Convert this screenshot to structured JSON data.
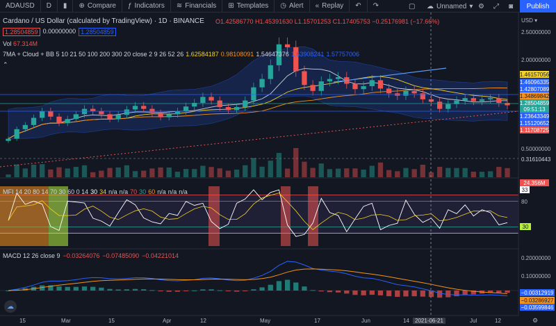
{
  "toolbar": {
    "symbol": "ADAUSD",
    "interval": "D",
    "compare": "Compare",
    "indicators": "Indicators",
    "financials": "Financials",
    "templates": "Templates",
    "alert": "Alert",
    "replay": "Replay",
    "layout_name": "Unnamed",
    "publish": "Publish"
  },
  "legend": {
    "title": "Cardano / US Dollar (calculated by TradingView) · 1D · BINANCE",
    "ohlc": "O1.42586770 H1.45391630 L1.15701253 C1.17405753 −0.25176981 (−17.66%)",
    "bid": "1.28504859",
    "spread": "0.00000000",
    "ask": "1.28504859",
    "vol_label": "Vol",
    "vol_value": "67.314M",
    "ma_label": "7MA + Cloud + BB 5 10 21 50 100 200 300 20 close 2 9 26 52 26",
    "ma_values": [
      "1.62584187",
      "0.98108091",
      "1.54647376",
      "1.63908241",
      "1.57757006"
    ],
    "mfi_label": "MFI 14 20 80 14 70 30 60 0 14",
    "mfi_values": [
      "30",
      "34",
      "n/a",
      "n/a",
      "70",
      "30",
      "60",
      "n/a",
      "n/a",
      "n/a"
    ],
    "macd_label": "MACD 12 26 close 9",
    "macd_values": [
      "−0.03264076",
      "−0.07485090",
      "−0.04221014"
    ]
  },
  "price_axis": {
    "currency": "USD",
    "labels": [
      "2.50000000",
      "2.00000000",
      "0.50000000",
      "0.31610443"
    ],
    "boxes": [
      {
        "value": "1.46157056",
        "color": "#f5d327",
        "text_color": "#131722"
      },
      {
        "value": "1.46096335",
        "color": "#2962ff",
        "text_color": "#ffffff"
      },
      {
        "value": "1.42807089",
        "color": "#2962ff",
        "text_color": "#ffffff"
      },
      {
        "value": "1.34869842",
        "color": "#f7931a",
        "text_color": "#131722"
      },
      {
        "value": "1.28504859",
        "color": "#26a69a",
        "text_color": "#ffffff"
      },
      {
        "value": "09:51:13",
        "color": "#26a69a",
        "text_color": "#ffffff"
      },
      {
        "value": "1.23643349",
        "color": "#2962ff",
        "text_color": "#ffffff"
      },
      {
        "value": "1.15120652",
        "color": "#2962ff",
        "text_color": "#ffffff"
      },
      {
        "value": "1.11708725",
        "color": "#ef5350",
        "text_color": "#ffffff"
      }
    ],
    "vol_box": "24.356M",
    "mfi_labels": [
      "80",
      "33",
      "30"
    ],
    "macd_labels": [
      "0.20000000",
      "0.10000000",
      "−0.00312919",
      "−0.03286927",
      "−0.03599846"
    ]
  },
  "time_axis": {
    "labels": [
      "15",
      "Mar",
      "15",
      "Apr",
      "12",
      "May",
      "17",
      "Jun",
      "14",
      "2021-06-21",
      "Jul",
      "12"
    ]
  },
  "colors": {
    "background": "#131722",
    "up": "#26a69a",
    "down": "#ef5350",
    "cloud": "#2962ff",
    "mfi_line": "#ffffff",
    "macd_line": "#2962ff",
    "signal_line": "#f7931a"
  },
  "chart_data": {
    "type": "candlestick",
    "symbol": "ADAUSD",
    "interval": "1D",
    "y_range": [
      0.25,
      2.6
    ],
    "close_approx": [
      0.72,
      0.88,
      0.95,
      1.07,
      1.18,
      1.09,
      0.98,
      1.05,
      1.13,
      1.22,
      1.18,
      1.13,
      1.05,
      1.12,
      1.21,
      1.27,
      1.22,
      1.15,
      1.08,
      1.13,
      1.18,
      1.26,
      1.32,
      1.42,
      1.36,
      1.25,
      1.2,
      1.25,
      1.36,
      1.58,
      1.72,
      1.95,
      2.3,
      2.25,
      1.85,
      1.62,
      1.52,
      1.68,
      1.72,
      1.75,
      1.64,
      1.55,
      1.6,
      1.7,
      1.56,
      1.48,
      1.44,
      1.52,
      1.48,
      1.38,
      1.34,
      1.22,
      1.3,
      1.36,
      1.4,
      1.35,
      1.38,
      1.4,
      1.32,
      1.28
    ]
  }
}
